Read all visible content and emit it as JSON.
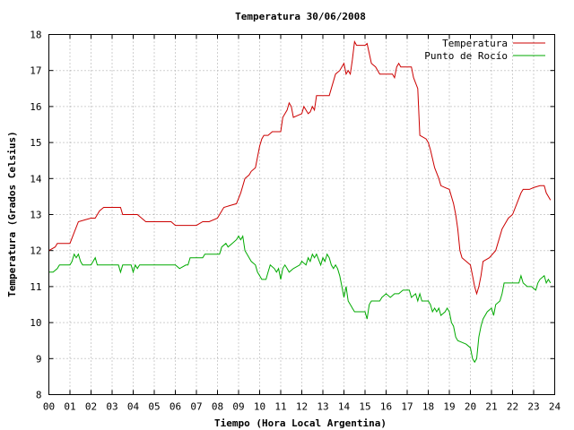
{
  "chart_data": {
    "type": "line",
    "title": "Temperatura 30/06/2008",
    "xlabel": "Tiempo (Hora Local Argentina)",
    "ylabel": "Temperatura (Grados Celsius)",
    "xlim": [
      0,
      24
    ],
    "ylim": [
      8,
      18
    ],
    "x_tick_labels": [
      "00",
      "01",
      "02",
      "03",
      "04",
      "05",
      "06",
      "07",
      "08",
      "09",
      "10",
      "11",
      "12",
      "13",
      "14",
      "15",
      "16",
      "17",
      "18",
      "19",
      "20",
      "21",
      "22",
      "23",
      "24"
    ],
    "y_tick_labels": [
      "8",
      "9",
      "10",
      "11",
      "12",
      "13",
      "14",
      "15",
      "16",
      "17",
      "18"
    ],
    "grid": true,
    "legend_position": "top-right",
    "series": [
      {
        "name": "Temperatura",
        "color": "#cc0000",
        "points": [
          [
            0.0,
            12.0
          ],
          [
            0.3,
            12.1
          ],
          [
            0.4,
            12.2
          ],
          [
            1.0,
            12.2
          ],
          [
            1.2,
            12.5
          ],
          [
            1.4,
            12.8
          ],
          [
            1.7,
            12.85
          ],
          [
            2.0,
            12.9
          ],
          [
            2.2,
            12.9
          ],
          [
            2.4,
            13.1
          ],
          [
            2.6,
            13.2
          ],
          [
            3.0,
            13.2
          ],
          [
            3.4,
            13.2
          ],
          [
            3.5,
            13.0
          ],
          [
            4.0,
            13.0
          ],
          [
            4.2,
            13.0
          ],
          [
            4.4,
            12.9
          ],
          [
            4.6,
            12.8
          ],
          [
            5.0,
            12.8
          ],
          [
            5.5,
            12.8
          ],
          [
            5.8,
            12.8
          ],
          [
            6.0,
            12.7
          ],
          [
            6.5,
            12.7
          ],
          [
            7.0,
            12.7
          ],
          [
            7.3,
            12.8
          ],
          [
            7.6,
            12.8
          ],
          [
            8.0,
            12.9
          ],
          [
            8.1,
            13.0
          ],
          [
            8.3,
            13.2
          ],
          [
            8.6,
            13.25
          ],
          [
            8.9,
            13.3
          ],
          [
            9.1,
            13.6
          ],
          [
            9.3,
            14.0
          ],
          [
            9.5,
            14.1
          ],
          [
            9.6,
            14.2
          ],
          [
            9.8,
            14.3
          ],
          [
            10.0,
            14.9
          ],
          [
            10.1,
            15.1
          ],
          [
            10.2,
            15.2
          ],
          [
            10.4,
            15.2
          ],
          [
            10.6,
            15.3
          ],
          [
            11.0,
            15.3
          ],
          [
            11.1,
            15.7
          ],
          [
            11.3,
            15.9
          ],
          [
            11.4,
            16.1
          ],
          [
            11.5,
            16.0
          ],
          [
            11.6,
            15.7
          ],
          [
            11.8,
            15.75
          ],
          [
            12.0,
            15.8
          ],
          [
            12.1,
            16.0
          ],
          [
            12.2,
            15.9
          ],
          [
            12.3,
            15.8
          ],
          [
            12.4,
            15.85
          ],
          [
            12.5,
            16.0
          ],
          [
            12.6,
            15.9
          ],
          [
            12.7,
            16.3
          ],
          [
            13.0,
            16.3
          ],
          [
            13.3,
            16.3
          ],
          [
            13.4,
            16.5
          ],
          [
            13.6,
            16.9
          ],
          [
            13.8,
            17.0
          ],
          [
            14.0,
            17.2
          ],
          [
            14.1,
            16.9
          ],
          [
            14.2,
            17.0
          ],
          [
            14.3,
            16.9
          ],
          [
            14.4,
            17.3
          ],
          [
            14.5,
            17.8
          ],
          [
            14.6,
            17.7
          ],
          [
            15.0,
            17.7
          ],
          [
            15.1,
            17.75
          ],
          [
            15.3,
            17.2
          ],
          [
            15.5,
            17.1
          ],
          [
            15.7,
            16.9
          ],
          [
            16.0,
            16.9
          ],
          [
            16.3,
            16.9
          ],
          [
            16.4,
            16.8
          ],
          [
            16.5,
            17.1
          ],
          [
            16.6,
            17.2
          ],
          [
            16.7,
            17.1
          ],
          [
            17.0,
            17.1
          ],
          [
            17.2,
            17.1
          ],
          [
            17.3,
            16.8
          ],
          [
            17.5,
            16.5
          ],
          [
            17.6,
            15.2
          ],
          [
            17.9,
            15.1
          ],
          [
            18.0,
            15.0
          ],
          [
            18.1,
            14.8
          ],
          [
            18.3,
            14.3
          ],
          [
            18.5,
            14.0
          ],
          [
            18.6,
            13.8
          ],
          [
            18.8,
            13.75
          ],
          [
            19.0,
            13.7
          ],
          [
            19.2,
            13.3
          ],
          [
            19.3,
            13.0
          ],
          [
            19.4,
            12.6
          ],
          [
            19.5,
            12.0
          ],
          [
            19.6,
            11.8
          ],
          [
            19.8,
            11.7
          ],
          [
            20.0,
            11.6
          ],
          [
            20.1,
            11.3
          ],
          [
            20.2,
            11.0
          ],
          [
            20.3,
            10.8
          ],
          [
            20.4,
            11.0
          ],
          [
            20.5,
            11.3
          ],
          [
            20.6,
            11.7
          ],
          [
            20.9,
            11.8
          ],
          [
            21.2,
            12.0
          ],
          [
            21.5,
            12.6
          ],
          [
            21.8,
            12.9
          ],
          [
            22.0,
            13.0
          ],
          [
            22.2,
            13.3
          ],
          [
            22.4,
            13.6
          ],
          [
            22.5,
            13.7
          ],
          [
            22.8,
            13.7
          ],
          [
            23.0,
            13.75
          ],
          [
            23.3,
            13.8
          ],
          [
            23.5,
            13.8
          ],
          [
            23.6,
            13.6
          ],
          [
            23.8,
            13.4
          ]
        ]
      },
      {
        "name": "Punto de Rocío",
        "color": "#00aa00",
        "points": [
          [
            0.0,
            11.4
          ],
          [
            0.2,
            11.4
          ],
          [
            0.4,
            11.5
          ],
          [
            0.5,
            11.6
          ],
          [
            1.0,
            11.6
          ],
          [
            1.1,
            11.7
          ],
          [
            1.2,
            11.9
          ],
          [
            1.3,
            11.8
          ],
          [
            1.4,
            11.9
          ],
          [
            1.5,
            11.7
          ],
          [
            1.6,
            11.6
          ],
          [
            2.0,
            11.6
          ],
          [
            2.2,
            11.8
          ],
          [
            2.3,
            11.6
          ],
          [
            2.5,
            11.6
          ],
          [
            3.0,
            11.6
          ],
          [
            3.3,
            11.6
          ],
          [
            3.4,
            11.4
          ],
          [
            3.5,
            11.6
          ],
          [
            3.9,
            11.6
          ],
          [
            4.0,
            11.4
          ],
          [
            4.1,
            11.6
          ],
          [
            4.2,
            11.5
          ],
          [
            4.3,
            11.6
          ],
          [
            5.0,
            11.6
          ],
          [
            5.5,
            11.6
          ],
          [
            6.0,
            11.6
          ],
          [
            6.2,
            11.5
          ],
          [
            6.5,
            11.6
          ],
          [
            6.6,
            11.6
          ],
          [
            6.7,
            11.8
          ],
          [
            7.0,
            11.8
          ],
          [
            7.3,
            11.8
          ],
          [
            7.4,
            11.9
          ],
          [
            7.8,
            11.9
          ],
          [
            8.1,
            11.9
          ],
          [
            8.2,
            12.1
          ],
          [
            8.4,
            12.2
          ],
          [
            8.5,
            12.1
          ],
          [
            8.7,
            12.2
          ],
          [
            8.9,
            12.3
          ],
          [
            9.0,
            12.4
          ],
          [
            9.1,
            12.3
          ],
          [
            9.2,
            12.4
          ],
          [
            9.3,
            12.0
          ],
          [
            9.5,
            11.8
          ],
          [
            9.6,
            11.7
          ],
          [
            9.8,
            11.6
          ],
          [
            9.9,
            11.4
          ],
          [
            10.0,
            11.3
          ],
          [
            10.1,
            11.2
          ],
          [
            10.3,
            11.2
          ],
          [
            10.4,
            11.4
          ],
          [
            10.5,
            11.6
          ],
          [
            10.7,
            11.5
          ],
          [
            10.8,
            11.4
          ],
          [
            10.9,
            11.5
          ],
          [
            11.0,
            11.2
          ],
          [
            11.1,
            11.5
          ],
          [
            11.2,
            11.6
          ],
          [
            11.3,
            11.5
          ],
          [
            11.4,
            11.4
          ],
          [
            11.6,
            11.5
          ],
          [
            11.9,
            11.6
          ],
          [
            12.0,
            11.7
          ],
          [
            12.2,
            11.6
          ],
          [
            12.3,
            11.8
          ],
          [
            12.4,
            11.7
          ],
          [
            12.5,
            11.9
          ],
          [
            12.6,
            11.8
          ],
          [
            12.7,
            11.9
          ],
          [
            12.9,
            11.6
          ],
          [
            13.0,
            11.8
          ],
          [
            13.1,
            11.7
          ],
          [
            13.2,
            11.9
          ],
          [
            13.3,
            11.8
          ],
          [
            13.4,
            11.6
          ],
          [
            13.5,
            11.5
          ],
          [
            13.6,
            11.6
          ],
          [
            13.7,
            11.5
          ],
          [
            13.8,
            11.3
          ],
          [
            13.9,
            11.0
          ],
          [
            14.0,
            10.7
          ],
          [
            14.1,
            11.0
          ],
          [
            14.2,
            10.6
          ],
          [
            14.3,
            10.5
          ],
          [
            14.4,
            10.4
          ],
          [
            14.5,
            10.3
          ],
          [
            14.7,
            10.3
          ],
          [
            15.0,
            10.3
          ],
          [
            15.1,
            10.1
          ],
          [
            15.2,
            10.5
          ],
          [
            15.3,
            10.6
          ],
          [
            15.5,
            10.6
          ],
          [
            15.7,
            10.6
          ],
          [
            15.8,
            10.7
          ],
          [
            16.0,
            10.8
          ],
          [
            16.2,
            10.7
          ],
          [
            16.4,
            10.8
          ],
          [
            16.6,
            10.8
          ],
          [
            16.8,
            10.9
          ],
          [
            17.0,
            10.9
          ],
          [
            17.1,
            10.9
          ],
          [
            17.2,
            10.7
          ],
          [
            17.4,
            10.8
          ],
          [
            17.5,
            10.6
          ],
          [
            17.6,
            10.8
          ],
          [
            17.7,
            10.6
          ],
          [
            17.9,
            10.6
          ],
          [
            18.0,
            10.6
          ],
          [
            18.1,
            10.5
          ],
          [
            18.2,
            10.3
          ],
          [
            18.3,
            10.4
          ],
          [
            18.4,
            10.3
          ],
          [
            18.5,
            10.4
          ],
          [
            18.6,
            10.2
          ],
          [
            18.8,
            10.3
          ],
          [
            18.9,
            10.4
          ],
          [
            19.0,
            10.3
          ],
          [
            19.1,
            10.0
          ],
          [
            19.2,
            9.9
          ],
          [
            19.3,
            9.6
          ],
          [
            19.4,
            9.5
          ],
          [
            19.6,
            9.45
          ],
          [
            19.8,
            9.4
          ],
          [
            20.0,
            9.3
          ],
          [
            20.1,
            9.0
          ],
          [
            20.2,
            8.9
          ],
          [
            20.3,
            9.0
          ],
          [
            20.4,
            9.6
          ],
          [
            20.5,
            9.9
          ],
          [
            20.6,
            10.1
          ],
          [
            20.8,
            10.3
          ],
          [
            21.0,
            10.4
          ],
          [
            21.1,
            10.2
          ],
          [
            21.2,
            10.5
          ],
          [
            21.4,
            10.6
          ],
          [
            21.5,
            10.8
          ],
          [
            21.6,
            11.1
          ],
          [
            22.0,
            11.1
          ],
          [
            22.3,
            11.1
          ],
          [
            22.4,
            11.3
          ],
          [
            22.5,
            11.1
          ],
          [
            22.7,
            11.0
          ],
          [
            22.9,
            11.0
          ],
          [
            23.1,
            10.9
          ],
          [
            23.2,
            11.1
          ],
          [
            23.3,
            11.2
          ],
          [
            23.5,
            11.3
          ],
          [
            23.6,
            11.1
          ],
          [
            23.7,
            11.2
          ],
          [
            23.8,
            11.1
          ]
        ]
      }
    ]
  }
}
